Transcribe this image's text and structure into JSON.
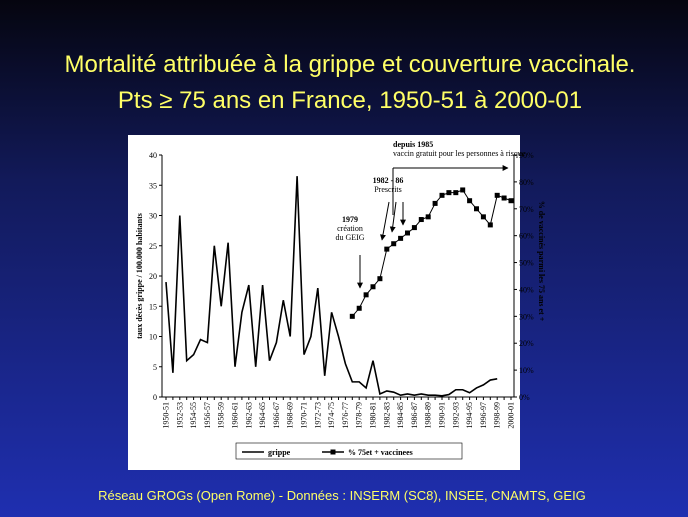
{
  "title": [
    "Mortalité attribuée à la grippe et couverture vaccinale.",
    "Pts ≥ 75 ans en France, 1950-51 à 2000-01"
  ],
  "footer": "Réseau GROGs (Open Rome) - Données : INSERM (SC8), INSEE, CNAMTS, GEIG",
  "chart_data": {
    "type": "line",
    "y_label": "taux décès grippe / 100.000 habitants",
    "y2_label": "% de vaccinés parmi les 75 ans et +",
    "categories": [
      "1950-51",
      null,
      "1952-53",
      null,
      "1954-55",
      null,
      "1956-57",
      null,
      "1958-59",
      null,
      "1960-61",
      null,
      "1962-63",
      null,
      "1964-65",
      null,
      "1966-67",
      null,
      "1968-69",
      null,
      "1970-71",
      null,
      "1972-73",
      null,
      "1974-75",
      null,
      "1976-77",
      null,
      "1978-79",
      null,
      "1980-81",
      null,
      "1982-83",
      null,
      "1984-85",
      null,
      "1986-87",
      null,
      "1988-89",
      null,
      "1990-91",
      null,
      "1992-93",
      null,
      "1994-95",
      null,
      "1996-97",
      null,
      "1998-99",
      null,
      "2000-01"
    ],
    "series": [
      {
        "name": "grippe",
        "color": "#000000",
        "marker": "none",
        "values": [
          19,
          4,
          30,
          6,
          7,
          9.5,
          9,
          25,
          15,
          25.5,
          5,
          14,
          18.5,
          5,
          18.5,
          6,
          9,
          16,
          10,
          36.5,
          7,
          10,
          18,
          3.5,
          14,
          10,
          5.5,
          2.5,
          2.5,
          1.5,
          6,
          0.5,
          1,
          0.8,
          0.3,
          0.5,
          0.3,
          0.5,
          0.3,
          0.3,
          0.2,
          0.4,
          1.2,
          1.2,
          0.7,
          1.5,
          2,
          2.8,
          3,
          null,
          null
        ]
      },
      {
        "name": "% 75et + vaccinees",
        "color": "#000000",
        "marker": "square",
        "axis": "y2",
        "values": [
          null,
          null,
          null,
          null,
          null,
          null,
          null,
          null,
          null,
          null,
          null,
          null,
          null,
          null,
          null,
          null,
          null,
          null,
          null,
          null,
          null,
          null,
          null,
          null,
          null,
          null,
          null,
          30,
          33,
          38,
          41,
          44,
          55,
          57,
          59,
          61,
          63,
          66,
          67,
          72,
          75,
          76,
          76,
          77,
          73,
          70,
          67,
          64,
          75,
          74,
          73
        ]
      }
    ],
    "ylim": [
      0,
      40
    ],
    "yticks": [
      0,
      5,
      10,
      15,
      20,
      25,
      30,
      35,
      40
    ],
    "y2lim": [
      0,
      90
    ],
    "y2ticks": [
      {
        "value": 0,
        "label": "0%"
      },
      {
        "value": 10,
        "label": "10%"
      },
      {
        "value": 20,
        "label": "20%"
      },
      {
        "value": 30,
        "label": "30%"
      },
      {
        "value": 40,
        "label": "40%"
      },
      {
        "value": 50,
        "label": "50%"
      },
      {
        "value": 60,
        "label": "60%"
      },
      {
        "value": 70,
        "label": "70%"
      },
      {
        "value": 80,
        "label": "80%"
      },
      {
        "value": 90,
        "label": "90%"
      }
    ],
    "annotations": [
      [
        "1979",
        "création",
        "du GEIG"
      ],
      [
        "1982 - 86",
        "Prescrits"
      ],
      [
        "depuis 1985",
        "vaccin gratuit pour les personnes à risque"
      ]
    ],
    "legend": "bottom"
  }
}
